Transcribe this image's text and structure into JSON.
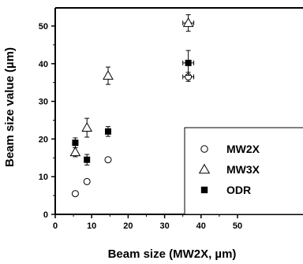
{
  "chart_data": {
    "type": "scatter",
    "xlabel": "Beam size (MW2X, µm)",
    "ylabel": "Beam size value (µm)",
    "xlim": [
      0,
      55
    ],
    "ylim": [
      0,
      55
    ],
    "xticks": [
      0,
      10,
      20,
      30,
      40,
      50
    ],
    "yticks": [
      0,
      10,
      20,
      30,
      40,
      50
    ],
    "grid": false,
    "legend_position": "bottom-right",
    "series": [
      {
        "name": "MW2X",
        "marker": "open-circle",
        "points": [
          {
            "x": 5.5,
            "y": 5.5,
            "xerr": 0,
            "yerr": 0
          },
          {
            "x": 8.7,
            "y": 8.7,
            "xerr": 0,
            "yerr": 0.5
          },
          {
            "x": 14.5,
            "y": 14.5,
            "xerr": 0,
            "yerr": 0
          },
          {
            "x": 36.5,
            "y": 36.5,
            "xerr": 1.5,
            "yerr": 1.2
          }
        ]
      },
      {
        "name": "MW3X",
        "marker": "open-triangle",
        "points": [
          {
            "x": 5.5,
            "y": 16.5,
            "xerr": 0,
            "yerr": 1.2
          },
          {
            "x": 8.7,
            "y": 23.0,
            "xerr": 0,
            "yerr": 2.5
          },
          {
            "x": 14.5,
            "y": 36.8,
            "xerr": 0,
            "yerr": 2.3
          },
          {
            "x": 36.5,
            "y": 50.8,
            "xerr": 1.5,
            "yerr": 2.2
          }
        ]
      },
      {
        "name": "ODR",
        "marker": "filled-square",
        "points": [
          {
            "x": 5.5,
            "y": 19.0,
            "xerr": 0,
            "yerr": 1.3
          },
          {
            "x": 8.7,
            "y": 14.5,
            "xerr": 0,
            "yerr": 1.4
          },
          {
            "x": 14.5,
            "y": 22.0,
            "xerr": 0,
            "yerr": 1.3
          },
          {
            "x": 36.5,
            "y": 40.2,
            "xerr": 1.5,
            "yerr": 3.3
          }
        ]
      }
    ]
  }
}
